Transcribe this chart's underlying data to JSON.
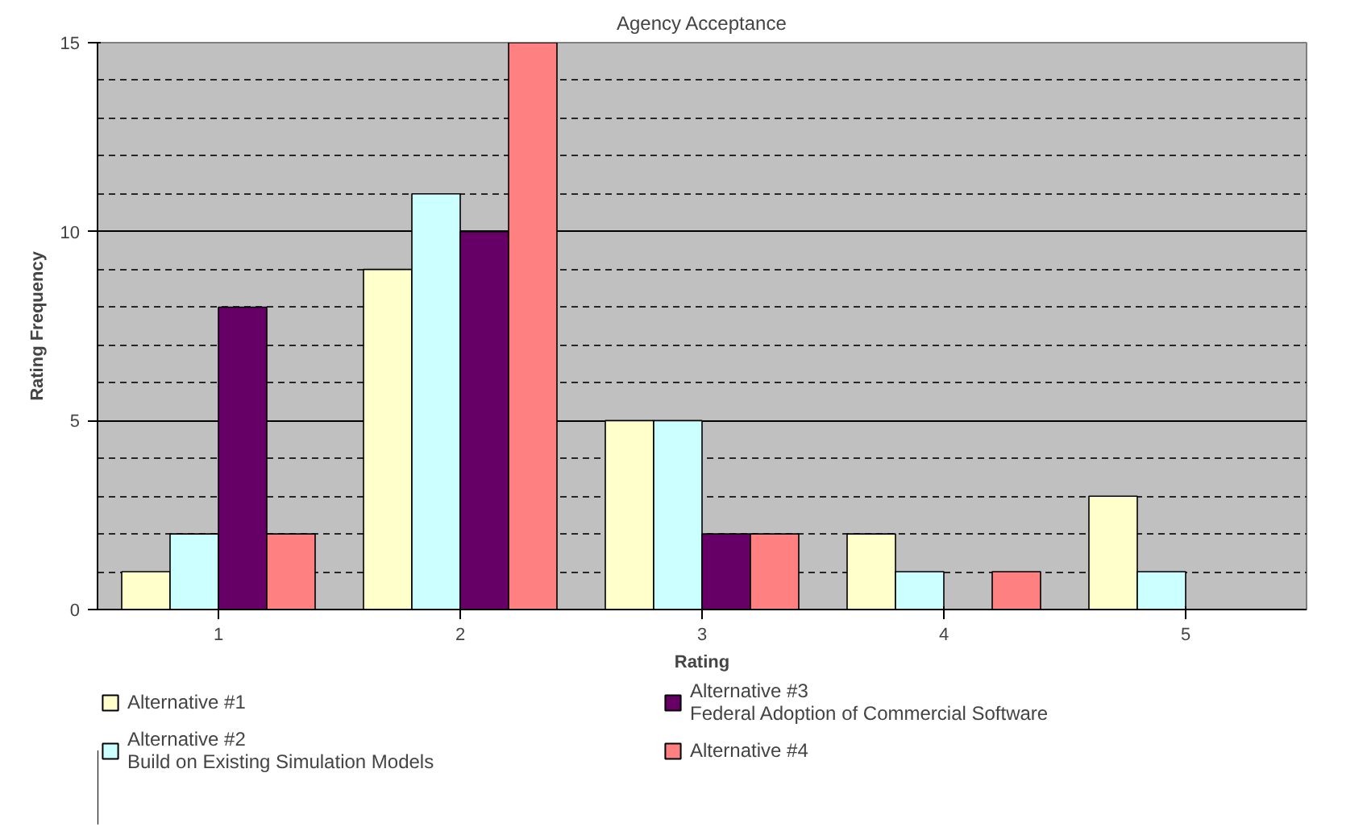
{
  "chart_data": {
    "type": "bar",
    "title": "Agency Acceptance",
    "xlabel": "Rating",
    "ylabel": "Rating Frequency",
    "categories": [
      "1",
      "2",
      "3",
      "4",
      "5"
    ],
    "series": [
      {
        "name": "Alternative #1",
        "color": "#ffffcc",
        "values": [
          1,
          9,
          5,
          2,
          3
        ]
      },
      {
        "name": "Alternative #2\nBuild on Existing Simulation Models",
        "color": "#ccffff",
        "values": [
          2,
          11,
          5,
          1,
          1
        ]
      },
      {
        "name": "Alternative #3\nFederal Adoption of Commercial Software",
        "color": "#660066",
        "values": [
          8,
          10,
          2,
          0,
          0
        ]
      },
      {
        "name": "Alternative #4",
        "color": "#ff8080",
        "values": [
          2,
          15,
          2,
          1,
          0
        ]
      }
    ],
    "ylim": [
      0,
      15
    ],
    "yticks": [
      0,
      5,
      10,
      15
    ],
    "grid": "y",
    "legend": "bottom"
  }
}
